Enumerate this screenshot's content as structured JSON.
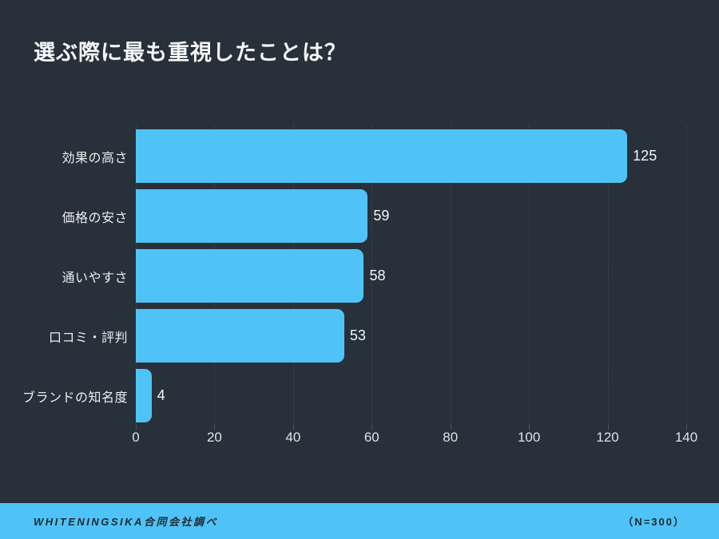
{
  "title": "選ぶ際に最も重視したことは？",
  "chart_data": {
    "type": "bar",
    "orientation": "horizontal",
    "title": "選ぶ際に最も重視したことは？",
    "categories": [
      "効果の高さ",
      "価格の安さ",
      "通いやすさ",
      "口コミ・評判",
      "ブランドの知名度"
    ],
    "values": [
      125,
      59,
      58,
      53,
      4
    ],
    "value_labels": [
      "125",
      "59",
      "58",
      "53",
      "4"
    ],
    "xlabel": "",
    "ylabel": "",
    "xlim": [
      0,
      140
    ],
    "xticks": [
      0,
      20,
      40,
      60,
      80,
      100,
      120,
      140
    ],
    "xtick_labels": [
      "0",
      "20",
      "40",
      "60",
      "80",
      "100",
      "120",
      "140"
    ],
    "grid": "vertical-dotted",
    "legend": "none",
    "bar_color": "#4fc3f7",
    "background_color": "#28303a",
    "text_color": "#f2f5f7"
  },
  "footer": {
    "left": "WHITENINGSIKA合同会社調べ",
    "right": "（N=300）",
    "background": "#4fc3f7",
    "text_color": "#1f2830"
  },
  "colors": {
    "page_background": "#28303a",
    "bar": "#4fc3f7",
    "gridline": "#3d4854",
    "title_text": "#f4f6f8",
    "axis_text": "#dde2e6",
    "footer_background": "#4fc3f7",
    "footer_text": "#1f2830"
  }
}
